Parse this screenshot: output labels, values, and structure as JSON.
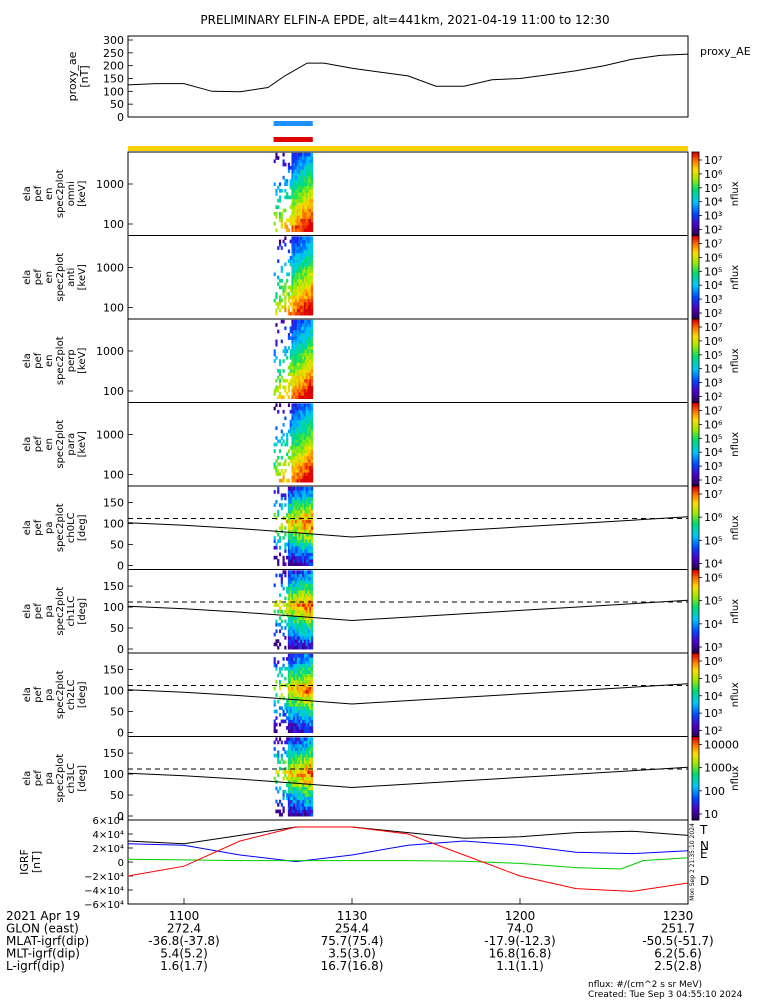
{
  "chart_data": {
    "type": "line",
    "title": "PRELIMINARY ELFIN-A EPDE, alt=441km, 2021-04-19 11:00 to 12:30",
    "x_ticks": [
      "1100",
      "1130",
      "1200",
      "1230"
    ],
    "x_tick_minutes": [
      0,
      30,
      60,
      90
    ],
    "x_range_minutes": [
      -10,
      90
    ],
    "science_zone_minutes": [
      16,
      23
    ],
    "proxy_ae": {
      "ylabel": "proxy_ae [nT]",
      "legend": "proxy_AE",
      "yticks": [
        "300",
        "250",
        "200",
        "150",
        "100",
        "50",
        "0"
      ],
      "ytick_values": [
        300,
        250,
        200,
        150,
        100,
        50,
        0
      ],
      "ylim": [
        0,
        300
      ],
      "t": [
        -10,
        -5,
        0,
        5,
        10,
        15,
        18,
        22,
        25,
        30,
        35,
        40,
        45,
        50,
        55,
        60,
        65,
        70,
        75,
        80,
        85,
        90
      ],
      "v": [
        125,
        130,
        130,
        100,
        98,
        115,
        160,
        210,
        210,
        190,
        175,
        160,
        120,
        120,
        145,
        150,
        165,
        180,
        200,
        225,
        240,
        245
      ]
    },
    "energy_panels": [
      {
        "label": [
          "ela",
          "pef",
          "en",
          "spec2plot",
          "omni",
          "[keV]"
        ],
        "yticks": [
          "1000",
          "100"
        ],
        "cbar_label": "nflux",
        "cbar_ticks": [
          "10⁷",
          "10⁶",
          "10⁵",
          "10⁴",
          "10³",
          "10²"
        ]
      },
      {
        "label": [
          "ela",
          "pef",
          "en",
          "spec2plot",
          "anti",
          "[keV]"
        ],
        "yticks": [
          "1000",
          "100"
        ],
        "cbar_label": "nflux",
        "cbar_ticks": [
          "10⁷",
          "10⁶",
          "10⁵",
          "10⁴",
          "10³",
          "10²"
        ]
      },
      {
        "label": [
          "ela",
          "pef",
          "en",
          "spec2plot",
          "perp",
          "[keV]"
        ],
        "yticks": [
          "1000",
          "100"
        ],
        "cbar_label": "nflux",
        "cbar_ticks": [
          "10⁷",
          "10⁶",
          "10⁵",
          "10⁴",
          "10³",
          "10²"
        ]
      },
      {
        "label": [
          "ela",
          "pef",
          "en",
          "spec2plot",
          "para",
          "[keV]"
        ],
        "yticks": [
          "1000",
          "100"
        ],
        "cbar_label": "nflux",
        "cbar_ticks": [
          "10⁷",
          "10⁶",
          "10⁵",
          "10⁴",
          "10³",
          "10²"
        ]
      }
    ],
    "pa_panels": [
      {
        "label": [
          "ela",
          "pef",
          "pa",
          "spec2plot",
          "ch0LC",
          "[deg]"
        ],
        "yticks": [
          "150",
          "100",
          "50",
          "0"
        ],
        "cbar_label": "nflux",
        "cbar_ticks": [
          "10⁷",
          "10⁶",
          "10⁵",
          "10⁴"
        ]
      },
      {
        "label": [
          "ela",
          "pef",
          "pa",
          "spec2plot",
          "ch1LC",
          "[deg]"
        ],
        "yticks": [
          "150",
          "100",
          "50",
          "0"
        ],
        "cbar_label": "nflux",
        "cbar_ticks": [
          "10⁶",
          "10⁵",
          "10⁴",
          "10³"
        ]
      },
      {
        "label": [
          "ela",
          "pef",
          "pa",
          "spec2plot",
          "ch2LC",
          "[deg]"
        ],
        "yticks": [
          "150",
          "100",
          "50",
          "0"
        ],
        "cbar_label": "nflux",
        "cbar_ticks": [
          "10⁶",
          "10⁵",
          "10⁴",
          "10³",
          "10²"
        ]
      },
      {
        "label": [
          "ela",
          "pef",
          "pa",
          "spec2plot",
          "ch3LC",
          "[deg]"
        ],
        "yticks": [
          "150",
          "100",
          "50",
          "0"
        ],
        "cbar_label": "nflux",
        "cbar_ticks": [
          "10000",
          "1000",
          "100",
          "10"
        ]
      }
    ],
    "loss_cone": {
      "pa_range": [
        0,
        180
      ],
      "t": [
        -10,
        0,
        10,
        20,
        30,
        40,
        50,
        60,
        70,
        80,
        90
      ],
      "solid": [
        102,
        96,
        88,
        78,
        68,
        76,
        84,
        92,
        100,
        108,
        116
      ],
      "dashed": [
        112,
        112,
        112,
        112,
        112,
        112,
        112,
        112,
        112,
        112,
        112
      ]
    },
    "igrf": {
      "ylabel": "IGRF [nT]",
      "yticks": [
        "6×10⁴",
        "4×10⁴",
        "2×10⁴",
        "0",
        "−2×10⁴",
        "−4×10⁴",
        "−6×10⁴"
      ],
      "ytick_values": [
        60000,
        40000,
        20000,
        0,
        -20000,
        -40000,
        -60000
      ],
      "ylim": [
        -60000,
        60000
      ],
      "series": [
        {
          "name": "T",
          "color": "#000000",
          "t": [
            -10,
            0,
            10,
            20,
            25,
            30,
            40,
            50,
            60,
            70,
            80,
            90
          ],
          "v": [
            30000,
            26000,
            38000,
            50000,
            50000,
            50000,
            42000,
            34000,
            36000,
            42000,
            44000,
            38000
          ]
        },
        {
          "name": "N",
          "color": "#0000ff",
          "t": [
            -10,
            0,
            10,
            20,
            30,
            40,
            50,
            60,
            70,
            80,
            90
          ],
          "v": [
            26000,
            24000,
            10000,
            500,
            10000,
            24000,
            30000,
            24000,
            14000,
            12000,
            16000
          ]
        },
        {
          "name": "E",
          "color": "#00cc00",
          "t": [
            -10,
            0,
            10,
            20,
            30,
            40,
            50,
            60,
            70,
            78,
            82,
            90
          ],
          "v": [
            4000,
            3000,
            2000,
            2000,
            2000,
            2000,
            1000,
            -2000,
            -8000,
            -10000,
            2000,
            6000
          ]
        },
        {
          "name": "D",
          "color": "#ff0000",
          "t": [
            -10,
            0,
            10,
            20,
            30,
            40,
            50,
            60,
            70,
            80,
            90
          ],
          "v": [
            -20000,
            -6000,
            30000,
            50000,
            50000,
            40000,
            10000,
            -20000,
            -38000,
            -42000,
            -30000
          ]
        }
      ]
    },
    "colorbar_stamp": "Mon Sep  2 21:35:10 2024",
    "orbit_table": {
      "rows": [
        {
          "label": "2021 Apr 19",
          "values": [
            "1100",
            "1130",
            "1200",
            "1230"
          ]
        },
        {
          "label": "GLON (east)",
          "values": [
            "272.4",
            "254.4",
            "74.0",
            "251.7"
          ]
        },
        {
          "label": "MLAT-igrf(dip)",
          "values": [
            "-36.8(-37.8)",
            "75.7(75.4)",
            "-17.9(-12.3)",
            "-50.5(-51.7)"
          ]
        },
        {
          "label": "MLT-igrf(dip)",
          "values": [
            "5.4(5.2)",
            "3.5(3.0)",
            "16.8(16.8)",
            "6.2(5.6)"
          ]
        },
        {
          "label": "L-igrf(dip)",
          "values": [
            "1.6(1.7)",
            "16.7(16.8)",
            "1.1(1.1)",
            "2.5(2.8)"
          ]
        }
      ]
    },
    "footnote": "nflux: #/(cm^2 s sr MeV)",
    "created": "Created: Tue Sep  3 04:55:10 2024"
  }
}
